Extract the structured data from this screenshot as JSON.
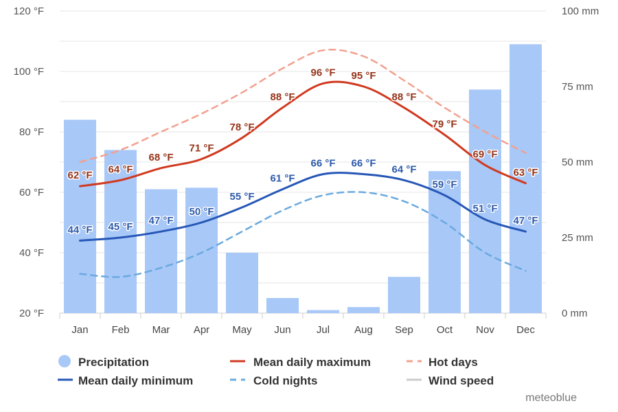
{
  "chart_data": {
    "type": "bar",
    "categories": [
      "Jan",
      "Feb",
      "Mar",
      "Apr",
      "May",
      "Jun",
      "Jul",
      "Aug",
      "Sep",
      "Oct",
      "Nov",
      "Dec"
    ],
    "y_left": {
      "unit": "°F",
      "min": 20,
      "max": 120,
      "ticks": [
        20,
        40,
        60,
        80,
        100,
        120
      ],
      "tick_labels": [
        "20 °F",
        "40 °F",
        "60 °F",
        "80 °F",
        "100 °F",
        "120 °F"
      ]
    },
    "y_right": {
      "unit": "mm",
      "min": 0,
      "max": 100,
      "ticks": [
        0,
        25,
        50,
        75,
        100
      ],
      "tick_labels": [
        "0 mm",
        "25 mm",
        "50 mm",
        "75 mm",
        "100 mm"
      ]
    },
    "grid": true,
    "legend_position": "bottom",
    "series": [
      {
        "name": "Precipitation",
        "type": "bar",
        "axis": "right",
        "unit": "mm",
        "color": "#a8c8f8",
        "values": [
          64,
          54,
          41,
          41.5,
          20,
          5,
          1,
          2,
          12,
          47,
          74,
          89
        ]
      },
      {
        "name": "Mean daily maximum",
        "type": "line",
        "axis": "left",
        "unit": "°F",
        "color": "#d0391f",
        "label_color": "#96341a",
        "dash": "solid",
        "labels_shown": true,
        "values": [
          62,
          64,
          68,
          71,
          78,
          88,
          96,
          95,
          88,
          79,
          69,
          63
        ]
      },
      {
        "name": "Hot days",
        "type": "line",
        "axis": "left",
        "unit": "°F",
        "color": "#f2a08e",
        "dash": "dashed",
        "labels_shown": false,
        "values": [
          70,
          74,
          80,
          86,
          93,
          101,
          107,
          105,
          97,
          88,
          80,
          73
        ]
      },
      {
        "name": "Mean daily minimum",
        "type": "line",
        "axis": "left",
        "unit": "°F",
        "color": "#2657b6",
        "label_color": "#2c5aaa",
        "dash": "solid",
        "labels_shown": true,
        "values": [
          44,
          45,
          47,
          50,
          55,
          61,
          66,
          66,
          64,
          59,
          51,
          47
        ]
      },
      {
        "name": "Cold nights",
        "type": "line",
        "axis": "left",
        "unit": "°F",
        "color": "#6aa9de",
        "dash": "dashed",
        "labels_shown": false,
        "values": [
          33,
          32,
          35,
          40,
          47,
          54,
          59,
          60,
          57,
          50,
          40,
          34
        ]
      }
    ],
    "legend": [
      {
        "name": "Precipitation",
        "symbol": "circle",
        "color": "#a8c8f8",
        "enabled": true
      },
      {
        "name": "Mean daily maximum",
        "symbol": "line",
        "color": "#d0391f",
        "enabled": true
      },
      {
        "name": "Hot days",
        "symbol": "dash",
        "color": "#f2a08e",
        "enabled": true
      },
      {
        "name": "Mean daily minimum",
        "symbol": "line",
        "color": "#2657b6",
        "enabled": true
      },
      {
        "name": "Cold nights",
        "symbol": "dash",
        "color": "#6aa9de",
        "enabled": true
      },
      {
        "name": "Wind speed",
        "symbol": "line",
        "color": "#cccccc",
        "enabled": false
      }
    ],
    "credit": "meteoblue"
  }
}
